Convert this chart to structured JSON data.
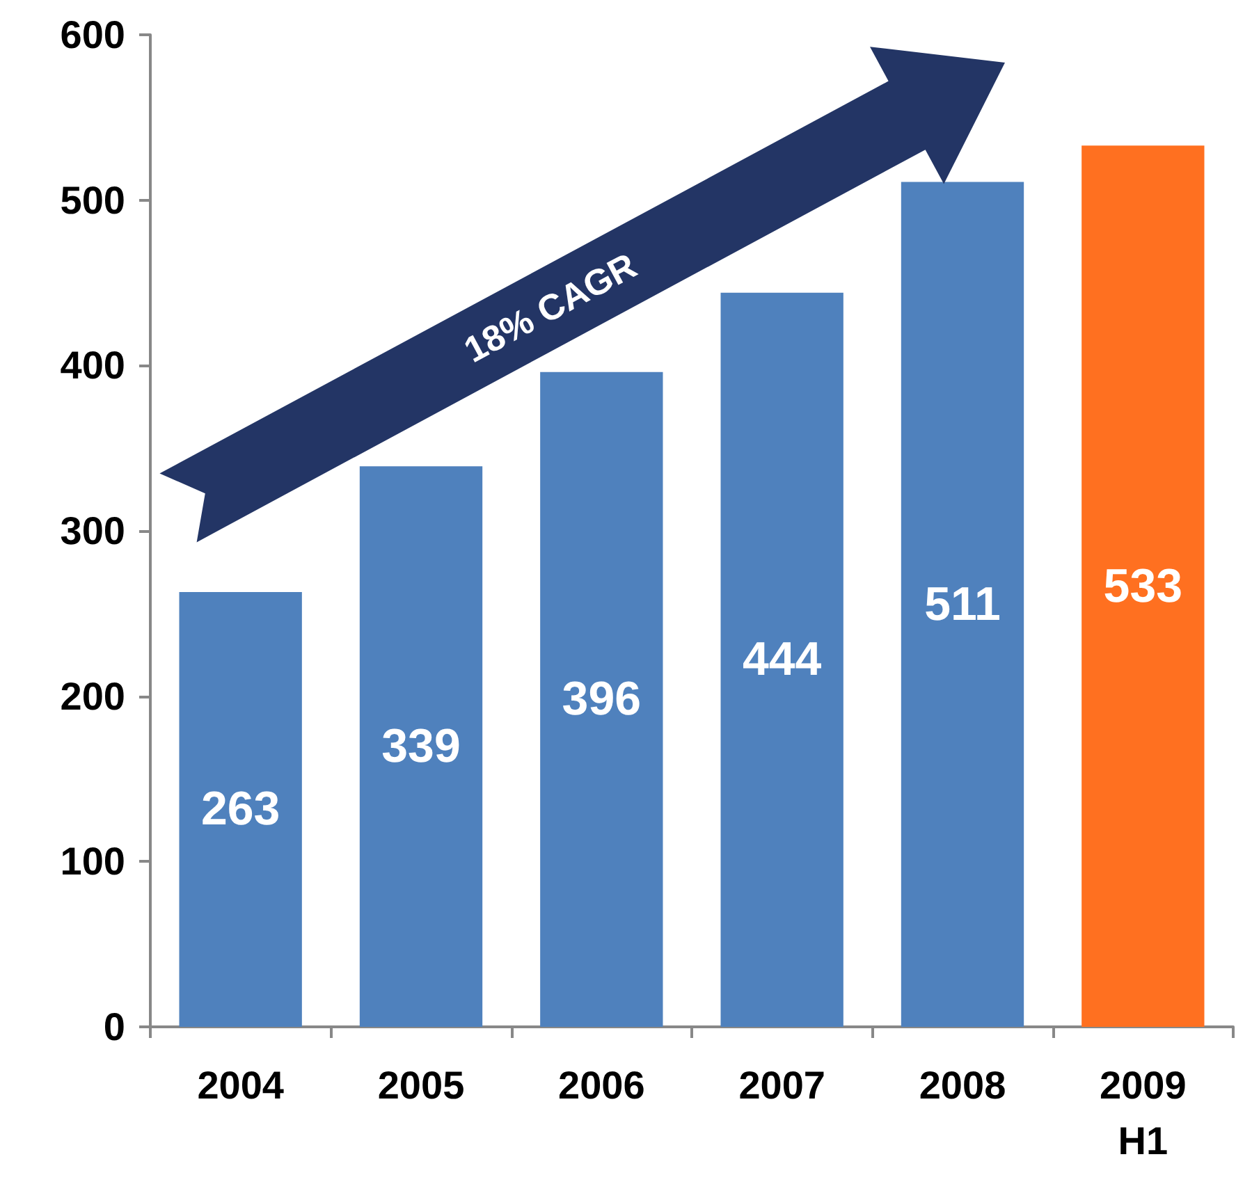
{
  "chart_data": {
    "type": "bar",
    "categories": [
      "2004",
      "2005",
      "2006",
      "2007",
      "2008",
      "2009\nH1"
    ],
    "values": [
      263,
      339,
      396,
      444,
      511,
      533
    ],
    "colors": [
      "#4f81bd",
      "#4f81bd",
      "#4f81bd",
      "#4f81bd",
      "#4f81bd",
      "#ff7020"
    ],
    "ylim": [
      0,
      600
    ],
    "yticks": [
      0,
      100,
      200,
      300,
      400,
      500,
      600
    ],
    "grid": false,
    "data_labels": true,
    "annotations": [
      "18% CAGR"
    ]
  }
}
